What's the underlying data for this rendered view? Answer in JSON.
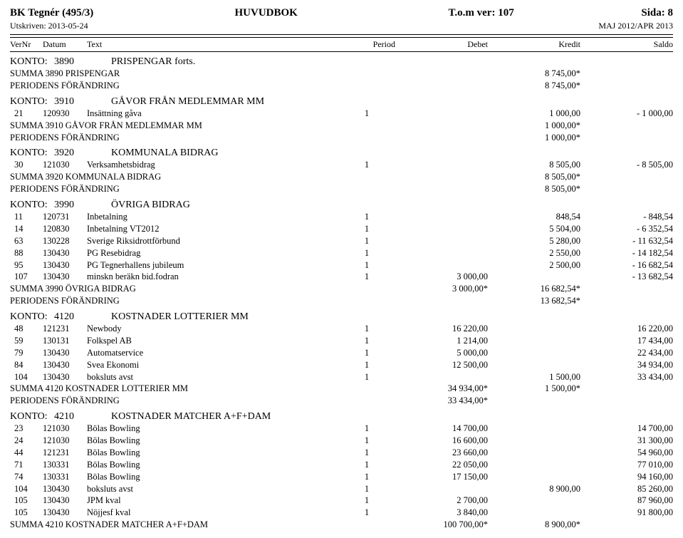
{
  "header": {
    "left": "BK Tegnér  (495/3)",
    "center": "HUVUDBOK",
    "right_ver": "T.o.m ver: 107",
    "right_page": "Sida: 8",
    "printed": "Utskriven: 2013-05-24",
    "period": "MAJ 2012/APR 2013"
  },
  "columns": {
    "vernr": "VerNr",
    "datum": "Datum",
    "text": "Text",
    "period": "Period",
    "debet": "Debet",
    "kredit": "Kredit",
    "saldo": "Saldo"
  },
  "sections": [
    {
      "konto_label": "KONTO:",
      "konto_num": "3890",
      "konto_name": "PRISPENGAR  forts.",
      "entries": [],
      "summa": [
        {
          "text": "SUMMA 3890 PRISPENGAR",
          "kredit": "8 745,00*"
        },
        {
          "text": "PERIODENS FÖRÄNDRING",
          "kredit": "8 745,00*"
        }
      ]
    },
    {
      "konto_label": "KONTO:",
      "konto_num": "3910",
      "konto_name": "GÅVOR FRÅN MEDLEMMAR MM",
      "entries": [
        {
          "vernr": "21",
          "datum": "120930",
          "text": "Insättning gåva",
          "period": "1",
          "kredit": "1 000,00",
          "saldo": "- 1 000,00"
        }
      ],
      "summa": [
        {
          "text": "SUMMA 3910 GÅVOR FRÅN MEDLEMMAR MM",
          "kredit": "1 000,00*"
        },
        {
          "text": "PERIODENS FÖRÄNDRING",
          "kredit": "1 000,00*"
        }
      ]
    },
    {
      "konto_label": "KONTO:",
      "konto_num": "3920",
      "konto_name": "KOMMUNALA BIDRAG",
      "entries": [
        {
          "vernr": "30",
          "datum": "121030",
          "text": "Verksamhetsbidrag",
          "period": "1",
          "kredit": "8 505,00",
          "saldo": "- 8 505,00"
        }
      ],
      "summa": [
        {
          "text": "SUMMA 3920 KOMMUNALA BIDRAG",
          "kredit": "8 505,00*"
        },
        {
          "text": "PERIODENS FÖRÄNDRING",
          "kredit": "8 505,00*"
        }
      ]
    },
    {
      "konto_label": "KONTO:",
      "konto_num": "3990",
      "konto_name": "ÖVRIGA BIDRAG",
      "entries": [
        {
          "vernr": "11",
          "datum": "120731",
          "text": "Inbetalning",
          "period": "1",
          "kredit": "848,54",
          "saldo": "- 848,54"
        },
        {
          "vernr": "14",
          "datum": "120830",
          "text": "Inbetalning VT2012",
          "period": "1",
          "kredit": "5 504,00",
          "saldo": "- 6 352,54"
        },
        {
          "vernr": "63",
          "datum": "130228",
          "text": "Sverige Riksidrottförbund",
          "period": "1",
          "kredit": "5 280,00",
          "saldo": "- 11 632,54"
        },
        {
          "vernr": "88",
          "datum": "130430",
          "text": "PG Resebidrag",
          "period": "1",
          "kredit": "2 550,00",
          "saldo": "- 14 182,54"
        },
        {
          "vernr": "95",
          "datum": "130430",
          "text": "PG Tegnerhallens jubileum",
          "period": "1",
          "kredit": "2 500,00",
          "saldo": "- 16 682,54"
        },
        {
          "vernr": "107",
          "datum": "130430",
          "text": "minskn beräkn bid.fodran",
          "period": "1",
          "debet": "3 000,00",
          "saldo": "- 13 682,54"
        }
      ],
      "summa": [
        {
          "text": "SUMMA 3990 ÖVRIGA BIDRAG",
          "debet": "3 000,00*",
          "kredit": "16 682,54*"
        },
        {
          "text": "PERIODENS FÖRÄNDRING",
          "kredit": "13 682,54*"
        }
      ]
    },
    {
      "konto_label": "KONTO:",
      "konto_num": "4120",
      "konto_name": "KOSTNADER LOTTERIER MM",
      "entries": [
        {
          "vernr": "48",
          "datum": "121231",
          "text": "Newbody",
          "period": "1",
          "debet": "16 220,00",
          "saldo": "16 220,00"
        },
        {
          "vernr": "59",
          "datum": "130131",
          "text": "Folkspel AB",
          "period": "1",
          "debet": "1 214,00",
          "saldo": "17 434,00"
        },
        {
          "vernr": "79",
          "datum": "130430",
          "text": "Automatservice",
          "period": "1",
          "debet": "5 000,00",
          "saldo": "22 434,00"
        },
        {
          "vernr": "84",
          "datum": "130430",
          "text": "Svea Ekonomi",
          "period": "1",
          "debet": "12 500,00",
          "saldo": "34 934,00"
        },
        {
          "vernr": "104",
          "datum": "130430",
          "text": "boksluts avst",
          "period": "1",
          "kredit": "1 500,00",
          "saldo": "33 434,00"
        }
      ],
      "summa": [
        {
          "text": "SUMMA 4120 KOSTNADER LOTTERIER MM",
          "debet": "34 934,00*",
          "kredit": "1 500,00*"
        },
        {
          "text": "PERIODENS FÖRÄNDRING",
          "debet": "33 434,00*"
        }
      ]
    },
    {
      "konto_label": "KONTO:",
      "konto_num": "4210",
      "konto_name": "KOSTNADER MATCHER A+F+DAM",
      "entries": [
        {
          "vernr": "23",
          "datum": "121030",
          "text": "Bölas Bowling",
          "period": "1",
          "debet": "14 700,00",
          "saldo": "14 700,00"
        },
        {
          "vernr": "24",
          "datum": "121030",
          "text": "Bölas Bowling",
          "period": "1",
          "debet": "16 600,00",
          "saldo": "31 300,00"
        },
        {
          "vernr": "44",
          "datum": "121231",
          "text": "Bölas Bowling",
          "period": "1",
          "debet": "23 660,00",
          "saldo": "54 960,00"
        },
        {
          "vernr": "71",
          "datum": "130331",
          "text": "Bölas Bowling",
          "period": "1",
          "debet": "22 050,00",
          "saldo": "77 010,00"
        },
        {
          "vernr": "74",
          "datum": "130331",
          "text": "Bölas Bowling",
          "period": "1",
          "debet": "17 150,00",
          "saldo": "94 160,00"
        },
        {
          "vernr": "104",
          "datum": "130430",
          "text": "boksluts avst",
          "period": "1",
          "kredit": "8 900,00",
          "saldo": "85 260,00"
        },
        {
          "vernr": "105",
          "datum": "130430",
          "text": "JPM kval",
          "period": "1",
          "debet": "2 700,00",
          "saldo": "87 960,00"
        },
        {
          "vernr": "105",
          "datum": "130430",
          "text": "Nöjjesf kval",
          "period": "1",
          "debet": "3 840,00",
          "saldo": "91 800,00"
        }
      ],
      "summa": [
        {
          "text": "SUMMA 4210 KOSTNADER MATCHER A+F+DAM",
          "debet": "100 700,00*",
          "kredit": "8 900,00*"
        }
      ]
    }
  ]
}
